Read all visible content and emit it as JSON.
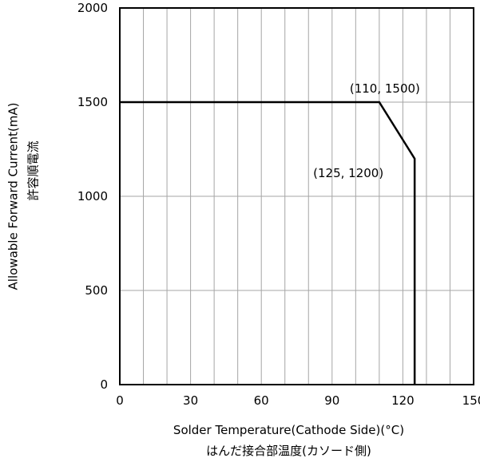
{
  "chart_data": {
    "type": "line",
    "title": "",
    "xlabel": "Solder Temperature(Cathode Side)(°C)",
    "xlabel_ja": "はんだ接合部温度(カソード側)",
    "ylabel": "Allowable Forward Current(mA)",
    "ylabel_ja": "許容順電流",
    "xlim": [
      0,
      150
    ],
    "ylim": [
      0,
      2000
    ],
    "x_major_ticks": [
      0,
      30,
      60,
      90,
      120,
      150
    ],
    "y_major_ticks": [
      0,
      500,
      1000,
      1500,
      2000
    ],
    "x_minor_grid_step": 10,
    "y_minor_grid_step": 500,
    "grid": true,
    "legend": "none",
    "series": [
      {
        "x": [
          0,
          110,
          125,
          125
        ],
        "y": [
          1500,
          1500,
          1200,
          0
        ]
      }
    ],
    "annotations": [
      {
        "text": "(110, 1500)",
        "x": 110,
        "y": 1500
      },
      {
        "text": "(125, 1200)",
        "x": 125,
        "y": 1200
      }
    ],
    "colors": {
      "line": "#000000",
      "grid": "#a6a6a6",
      "frame": "#000000"
    }
  }
}
